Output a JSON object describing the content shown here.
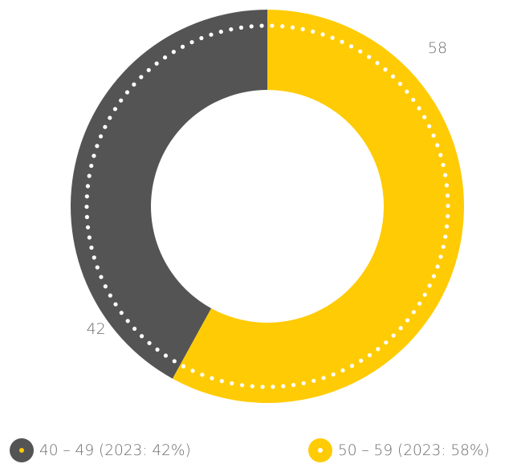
{
  "chart_data": {
    "type": "pie",
    "donut": true,
    "categories": [
      "40 – 49 (2023: 42%)",
      "50 – 59 (2023: 58%)"
    ],
    "values": [
      42,
      58
    ],
    "data_labels": [
      "42",
      "58"
    ],
    "colors": [
      "#555454",
      "#ffcb05"
    ],
    "inner_dot_color": "#ffffff",
    "legend_position": "bottom",
    "start": "top",
    "direction": "counterclockwise-first-slice-left"
  },
  "legend": {
    "items": [
      {
        "label": "40 – 49 (2023: 42%)",
        "color": "#555454",
        "dot_color": "#ffcb05"
      },
      {
        "label": "50 – 59 (2023: 58%)",
        "color": "#ffcb05",
        "dot_color": "#ffffff"
      }
    ]
  }
}
